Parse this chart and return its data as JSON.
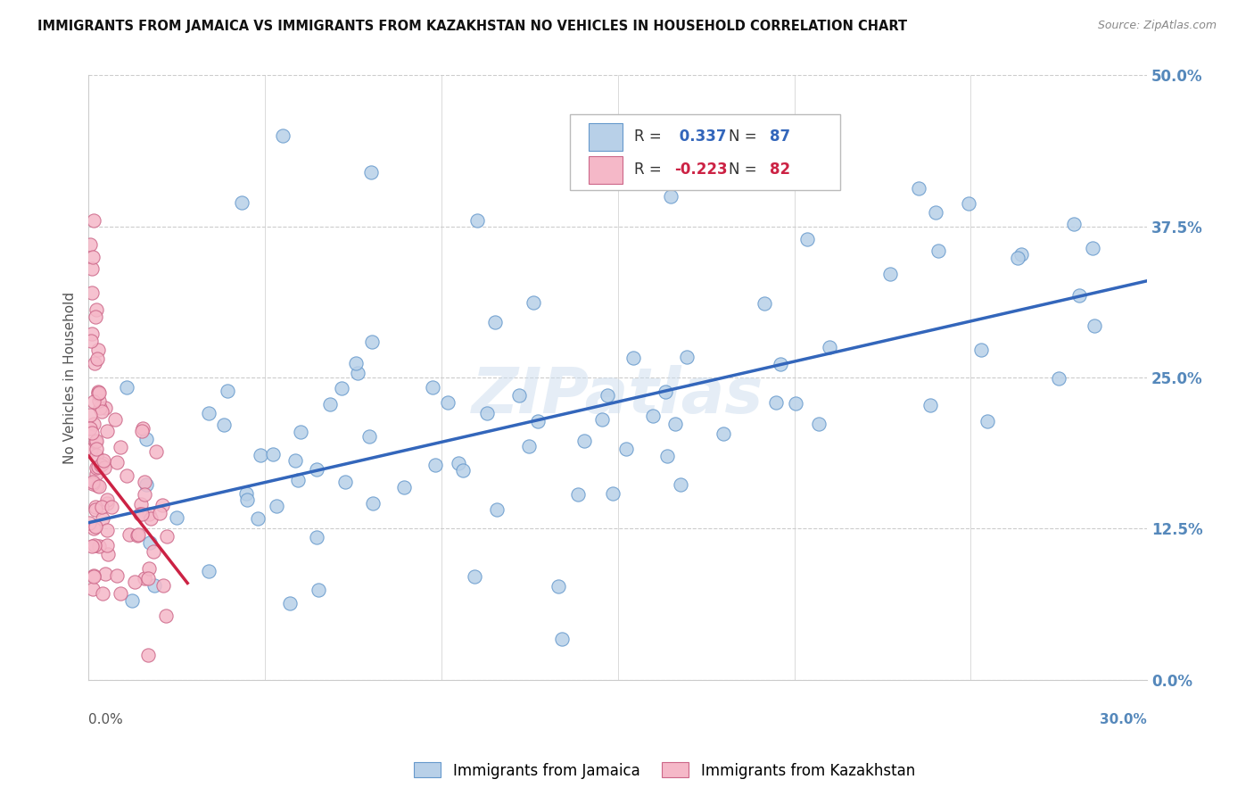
{
  "title": "IMMIGRANTS FROM JAMAICA VS IMMIGRANTS FROM KAZAKHSTAN NO VEHICLES IN HOUSEHOLD CORRELATION CHART",
  "source": "Source: ZipAtlas.com",
  "ylabel_label": "No Vehicles in Household",
  "legend_label1": "Immigrants from Jamaica",
  "legend_label2": "Immigrants from Kazakhstan",
  "R1": 0.337,
  "N1": 87,
  "R2": -0.223,
  "N2": 82,
  "color_jamaica_fill": "#b8d0e8",
  "color_jamaica_edge": "#6699cc",
  "color_kazakhstan_fill": "#f5b8c8",
  "color_kazakhstan_edge": "#cc6688",
  "color_jamaica_line": "#3366bb",
  "color_kazakhstan_line": "#cc2244",
  "watermark": "ZIPatlas",
  "background_color": "#ffffff",
  "xmin": 0.0,
  "xmax": 30.0,
  "ymin": 0.0,
  "ymax": 50.0,
  "y_tick_vals": [
    0.0,
    12.5,
    25.0,
    37.5,
    50.0
  ],
  "jamaica_line_x0": 0.0,
  "jamaica_line_y0": 13.0,
  "jamaica_line_x1": 30.0,
  "jamaica_line_y1": 33.0,
  "kaz_line_x0": 0.0,
  "kaz_line_y0": 18.5,
  "kaz_line_x1": 2.8,
  "kaz_line_y1": 8.0,
  "dot_size": 120
}
